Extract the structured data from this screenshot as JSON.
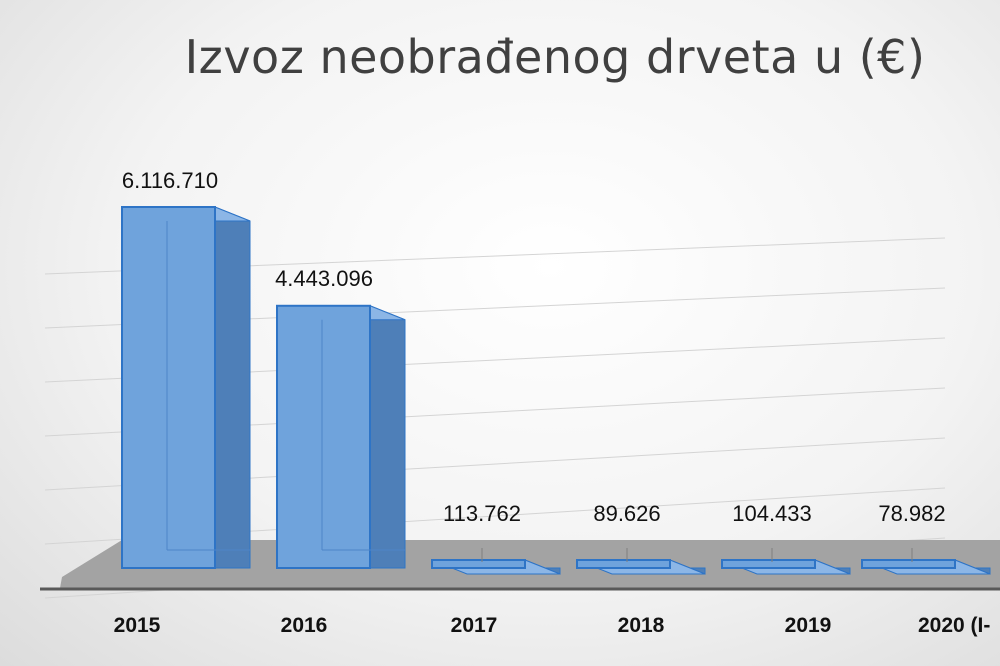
{
  "chart_data": {
    "type": "bar",
    "title": "Izvoz neobrađenog drveta u (€)",
    "categories": [
      "2015",
      "2016",
      "2017",
      "2018",
      "2019",
      "2020 (I-"
    ],
    "values": [
      6116710,
      4443096,
      113762,
      89626,
      104433,
      78982
    ],
    "data_labels": [
      "6.116.710",
      "4.443.096",
      "113.762",
      "89.626",
      "104.433",
      "78.982"
    ],
    "xlabel": "",
    "ylabel": "",
    "ylim": [
      0,
      7000000
    ],
    "grid": true,
    "legend": "none",
    "bar_color": "#6fa3dc",
    "bar_edge_color": "#2e74c6"
  }
}
